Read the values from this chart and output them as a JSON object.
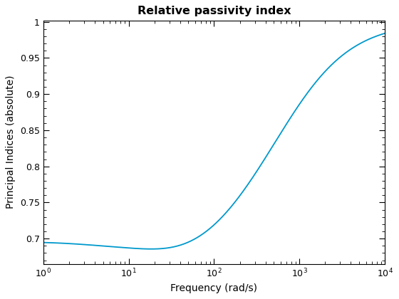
{
  "title": "Relative passivity index",
  "xlabel": "Frequency (rad/s)",
  "ylabel": "Principal Indices (absolute)",
  "line_color": "#0099CC",
  "line_width": 1.3,
  "xlim": [
    1,
    10000
  ],
  "ylim": [
    0.665,
    1.002
  ],
  "yticks": [
    0.7,
    0.75,
    0.8,
    0.85,
    0.9,
    0.95,
    1.0
  ],
  "background_color": "#ffffff",
  "title_fontsize": 11.5,
  "label_fontsize": 10,
  "tick_fontsize": 9
}
